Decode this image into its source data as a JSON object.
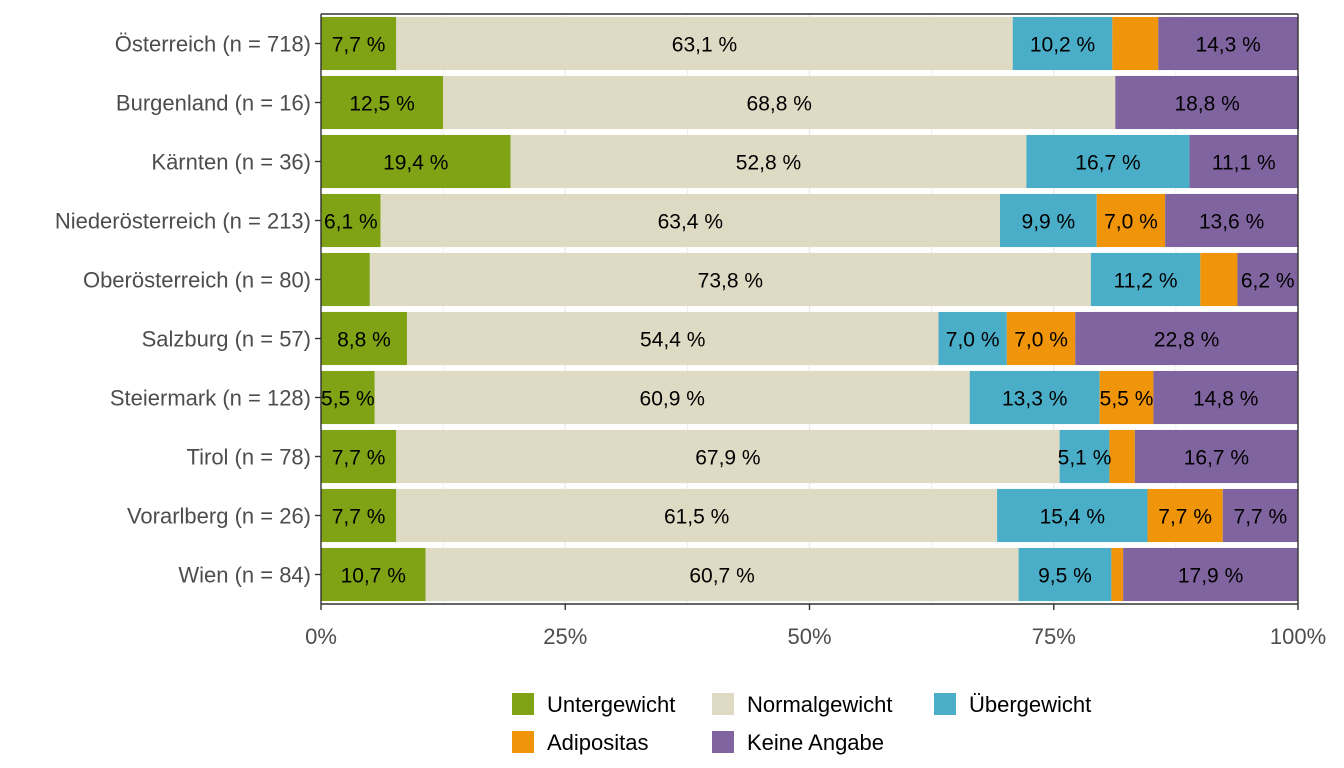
{
  "chart_data": {
    "type": "bar",
    "orientation": "horizontal",
    "stacked": true,
    "title": "",
    "xlabel": "",
    "ylabel": "",
    "xlim": [
      0,
      100
    ],
    "x_ticks": [
      "0%",
      "25%",
      "50%",
      "75%",
      "100%"
    ],
    "grid": true,
    "legend_position": "bottom",
    "categories": [
      "Österreich (n = 718)",
      "Burgenland (n = 16)",
      "Kärnten (n = 36)",
      "Niederösterreich (n = 213)",
      "Oberösterreich (n = 80)",
      "Salzburg (n = 57)",
      "Steiermark (n = 128)",
      "Tirol (n = 78)",
      "Vorarlberg (n = 26)",
      "Wien (n = 84)"
    ],
    "series": [
      {
        "name": "Untergewicht",
        "color": "#7fa315",
        "values": [
          7.7,
          12.5,
          19.4,
          6.1,
          5.0,
          8.8,
          5.5,
          7.7,
          7.7,
          10.7
        ],
        "labels": [
          "7,7 %",
          "12,5 %",
          "19,4 %",
          "6,1 %",
          "",
          "8,8 %",
          "5,5 %",
          "7,7 %",
          "7,7 %",
          "10,7 %"
        ]
      },
      {
        "name": "Normalgewicht",
        "color": "#dfdac4",
        "values": [
          63.1,
          68.8,
          52.8,
          63.4,
          73.8,
          54.4,
          60.9,
          67.9,
          61.5,
          60.7
        ],
        "labels": [
          "63,1 %",
          "68,8 %",
          "52,8 %",
          "63,4 %",
          "73,8 %",
          "54,4 %",
          "60,9 %",
          "67,9 %",
          "61,5 %",
          "60,7 %"
        ]
      },
      {
        "name": "Übergewicht",
        "color": "#4aaec8",
        "values": [
          10.2,
          0,
          16.7,
          9.9,
          11.2,
          7.0,
          13.3,
          5.1,
          15.4,
          9.5
        ],
        "labels": [
          "10,2 %",
          "",
          "16,7 %",
          "9,9 %",
          "11,2 %",
          "7,0 %",
          "13,3 %",
          "5,1 %",
          "15,4 %",
          "9,5 %"
        ]
      },
      {
        "name": "Adipositas",
        "color": "#f0940a",
        "values": [
          4.7,
          0,
          0,
          7.0,
          3.8,
          7.0,
          5.5,
          2.6,
          7.7,
          1.2
        ],
        "labels": [
          "",
          "",
          "",
          "7,0 %",
          "",
          "7,0 %",
          "5,5 %",
          "",
          "7,7 %",
          ""
        ]
      },
      {
        "name": "Keine Angabe",
        "color": "#8064a0",
        "values": [
          14.3,
          18.8,
          11.1,
          13.6,
          6.2,
          22.8,
          14.8,
          16.7,
          7.7,
          17.9
        ],
        "labels": [
          "14,3 %",
          "18,8 %",
          "11,1 %",
          "13,6 %",
          "6,2 %",
          "22,8 %",
          "14,8 %",
          "16,7 %",
          "7,7 %",
          "17,9 %"
        ]
      }
    ],
    "legend": {
      "rows": [
        [
          "Untergewicht",
          "Normalgewicht",
          "Übergewicht"
        ],
        [
          "Adipositas",
          "Keine Angabe"
        ]
      ]
    },
    "colors": {
      "grid": "#ebebeb",
      "axis": "#333333",
      "background": "#ffffff"
    }
  }
}
